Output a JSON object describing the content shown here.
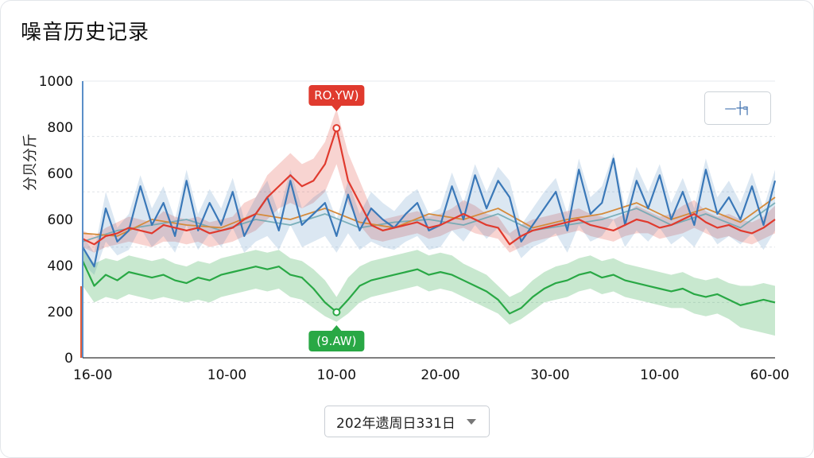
{
  "header": {
    "title": "噪音历史记录"
  },
  "legend": {
    "label": "—┼╕"
  },
  "date_picker": {
    "value": "202年遗周日331日"
  },
  "colors": {
    "red": "#e03a2e",
    "blue": "#3a78b8",
    "green": "#29a845",
    "orange": "#d58a3a",
    "teal": "#6aa6b0"
  },
  "chart_data": {
    "type": "line",
    "title": "",
    "xlabel": "",
    "ylabel": "分贝分斤",
    "ylim": [
      0,
      1000
    ],
    "yticks": [
      {
        "value": 0,
        "label": "0"
      },
      {
        "value": 200,
        "label": "200"
      },
      {
        "value": 400,
        "label": "400"
      },
      {
        "value": 600,
        "label": "600"
      },
      {
        "value": 800,
        "label": "800"
      },
      {
        "value": 1000,
        "label": "1000"
      }
    ],
    "ytick_labels_shown": [
      "0",
      "200",
      "400",
      "600",
      "600",
      "800",
      "1000"
    ],
    "xlim": [
      0,
      60
    ],
    "xticks": [
      {
        "value": 0,
        "label": "16-00"
      },
      {
        "value": 12.5,
        "label": "10-00"
      },
      {
        "value": 22,
        "label": "10-00"
      },
      {
        "value": 31,
        "label": "20-00"
      },
      {
        "value": 40.5,
        "label": "30-00"
      },
      {
        "value": 50,
        "label": "10-00"
      },
      {
        "value": 60,
        "label": "60-00"
      }
    ],
    "grid": true,
    "annotations": [
      {
        "label": "RO.YW)",
        "x": 22,
        "y": 830,
        "series": "red"
      },
      {
        "label": "(9.AW)",
        "x": 22,
        "y": 165,
        "series": "green"
      }
    ],
    "series": [
      {
        "key": "red",
        "x": [
          0,
          1,
          2,
          3,
          4,
          5,
          6,
          7,
          8,
          9,
          10,
          11,
          12,
          13,
          14,
          15,
          16,
          17,
          18,
          19,
          20,
          21,
          22,
          23,
          24,
          25,
          26,
          27,
          28,
          29,
          30,
          31,
          32,
          33,
          34,
          35,
          36,
          37,
          38,
          39,
          40,
          41,
          42,
          43,
          44,
          45,
          46,
          47,
          48,
          49,
          50,
          51,
          52,
          53,
          54,
          55,
          56,
          57,
          58,
          59,
          60
        ],
        "values": [
          430,
          410,
          440,
          450,
          470,
          460,
          450,
          480,
          470,
          460,
          470,
          450,
          460,
          470,
          500,
          520,
          580,
          620,
          660,
          620,
          640,
          700,
          830,
          640,
          560,
          480,
          460,
          470,
          480,
          490,
          470,
          480,
          500,
          520,
          500,
          480,
          470,
          410,
          440,
          460,
          470,
          480,
          490,
          500,
          480,
          470,
          460,
          480,
          500,
          490,
          470,
          480,
          500,
          520,
          490,
          470,
          480,
          460,
          450,
          470,
          500
        ],
        "band_low": [
          400,
          380,
          400,
          410,
          420,
          410,
          400,
          420,
          420,
          410,
          420,
          400,
          410,
          420,
          440,
          460,
          500,
          540,
          560,
          540,
          560,
          600,
          700,
          560,
          480,
          430,
          420,
          430,
          440,
          450,
          430,
          440,
          460,
          470,
          450,
          440,
          430,
          380,
          400,
          420,
          430,
          440,
          450,
          460,
          440,
          430,
          420,
          440,
          450,
          450,
          430,
          440,
          450,
          470,
          450,
          430,
          440,
          420,
          410,
          430,
          450
        ],
        "band_high": [
          460,
          440,
          470,
          490,
          510,
          500,
          490,
          530,
          510,
          500,
          510,
          490,
          500,
          510,
          560,
          580,
          660,
          700,
          740,
          700,
          720,
          780,
          900,
          740,
          640,
          540,
          500,
          510,
          520,
          530,
          510,
          520,
          540,
          570,
          550,
          520,
          510,
          450,
          480,
          500,
          510,
          520,
          530,
          540,
          520,
          510,
          500,
          520,
          550,
          530,
          510,
          520,
          550,
          570,
          530,
          510,
          520,
          500,
          490,
          510,
          550
        ]
      },
      {
        "key": "blue",
        "x": [
          0,
          1,
          2,
          3,
          4,
          5,
          6,
          7,
          8,
          9,
          10,
          11,
          12,
          13,
          14,
          15,
          16,
          17,
          18,
          19,
          20,
          21,
          22,
          23,
          24,
          25,
          26,
          27,
          28,
          29,
          30,
          31,
          32,
          33,
          34,
          35,
          36,
          37,
          38,
          39,
          40,
          41,
          42,
          43,
          44,
          45,
          46,
          47,
          48,
          49,
          50,
          51,
          52,
          53,
          54,
          55,
          56,
          57,
          58,
          59,
          60
        ],
        "values": [
          400,
          330,
          540,
          420,
          460,
          620,
          480,
          560,
          440,
          640,
          460,
          560,
          480,
          600,
          440,
          520,
          580,
          460,
          640,
          480,
          520,
          560,
          440,
          590,
          460,
          540,
          500,
          470,
          520,
          560,
          460,
          480,
          620,
          500,
          660,
          540,
          640,
          580,
          420,
          480,
          540,
          600,
          460,
          680,
          520,
          560,
          720,
          480,
          640,
          540,
          660,
          500,
          600,
          480,
          680,
          520,
          580,
          500,
          620,
          480,
          640
        ],
        "band_low": [
          340,
          300,
          420,
          370,
          390,
          470,
          400,
          440,
          380,
          480,
          390,
          450,
          400,
          470,
          380,
          420,
          440,
          390,
          480,
          400,
          420,
          440,
          380,
          450,
          390,
          420,
          400,
          390,
          420,
          440,
          390,
          400,
          460,
          420,
          480,
          430,
          470,
          440,
          360,
          400,
          420,
          450,
          380,
          480,
          420,
          440,
          500,
          400,
          460,
          420,
          470,
          410,
          440,
          400,
          470,
          410,
          440,
          410,
          450,
          390,
          460
        ],
        "band_high": [
          440,
          380,
          600,
          470,
          520,
          660,
          540,
          620,
          500,
          680,
          520,
          610,
          540,
          650,
          500,
          580,
          640,
          520,
          680,
          540,
          580,
          610,
          500,
          640,
          520,
          600,
          560,
          530,
          580,
          610,
          520,
          540,
          670,
          560,
          700,
          600,
          690,
          640,
          480,
          540,
          600,
          650,
          520,
          720,
          580,
          620,
          740,
          540,
          690,
          600,
          700,
          560,
          650,
          540,
          720,
          580,
          640,
          560,
          670,
          540,
          680
        ]
      },
      {
        "key": "orange",
        "x": [
          0,
          3,
          6,
          9,
          12,
          15,
          18,
          21,
          24,
          27,
          30,
          33,
          36,
          39,
          42,
          45,
          48,
          51,
          54,
          57,
          60
        ],
        "values": [
          450,
          440,
          500,
          480,
          470,
          520,
          500,
          540,
          490,
          470,
          520,
          500,
          540,
          470,
          500,
          520,
          560,
          500,
          540,
          490,
          580
        ]
      },
      {
        "key": "teal",
        "x": [
          0,
          3,
          6,
          9,
          12,
          15,
          18,
          21,
          24,
          27,
          30,
          33,
          36,
          39,
          42,
          45,
          48,
          51,
          54,
          57,
          60
        ],
        "values": [
          420,
          460,
          480,
          500,
          460,
          500,
          480,
          520,
          470,
          490,
          500,
          480,
          520,
          460,
          480,
          500,
          540,
          480,
          520,
          470,
          560
        ]
      },
      {
        "key": "green",
        "x": [
          0,
          1,
          2,
          3,
          4,
          5,
          6,
          7,
          8,
          9,
          10,
          11,
          12,
          13,
          14,
          15,
          16,
          17,
          18,
          19,
          20,
          21,
          22,
          23,
          24,
          25,
          26,
          27,
          28,
          29,
          30,
          31,
          32,
          33,
          34,
          35,
          36,
          37,
          38,
          39,
          40,
          41,
          42,
          43,
          44,
          45,
          46,
          47,
          48,
          49,
          50,
          51,
          52,
          53,
          54,
          55,
          56,
          57,
          58,
          59,
          60
        ],
        "values": [
          350,
          260,
          300,
          280,
          310,
          300,
          290,
          300,
          280,
          270,
          290,
          280,
          300,
          310,
          320,
          330,
          320,
          330,
          300,
          290,
          250,
          200,
          165,
          210,
          260,
          280,
          290,
          300,
          310,
          320,
          300,
          310,
          300,
          280,
          260,
          240,
          210,
          160,
          180,
          220,
          250,
          270,
          280,
          300,
          310,
          290,
          300,
          280,
          270,
          260,
          250,
          240,
          250,
          230,
          220,
          230,
          210,
          190,
          200,
          210,
          200
        ],
        "band_low": [
          260,
          200,
          220,
          210,
          230,
          220,
          210,
          220,
          210,
          200,
          210,
          200,
          220,
          230,
          240,
          250,
          240,
          250,
          220,
          210,
          180,
          150,
          130,
          160,
          200,
          220,
          230,
          240,
          250,
          260,
          240,
          250,
          240,
          220,
          200,
          180,
          160,
          120,
          140,
          170,
          200,
          210,
          220,
          240,
          250,
          230,
          240,
          220,
          210,
          200,
          190,
          180,
          180,
          160,
          150,
          160,
          140,
          110,
          100,
          90,
          80
        ],
        "band_high": [
          400,
          340,
          360,
          350,
          370,
          360,
          350,
          360,
          340,
          330,
          350,
          340,
          360,
          370,
          380,
          390,
          380,
          390,
          360,
          350,
          320,
          280,
          220,
          290,
          330,
          350,
          360,
          370,
          380,
          390,
          370,
          380,
          370,
          340,
          320,
          300,
          260,
          220,
          240,
          280,
          310,
          330,
          340,
          360,
          370,
          350,
          360,
          340,
          330,
          320,
          310,
          300,
          310,
          290,
          280,
          290,
          270,
          260,
          260,
          270,
          260
        ]
      }
    ]
  }
}
